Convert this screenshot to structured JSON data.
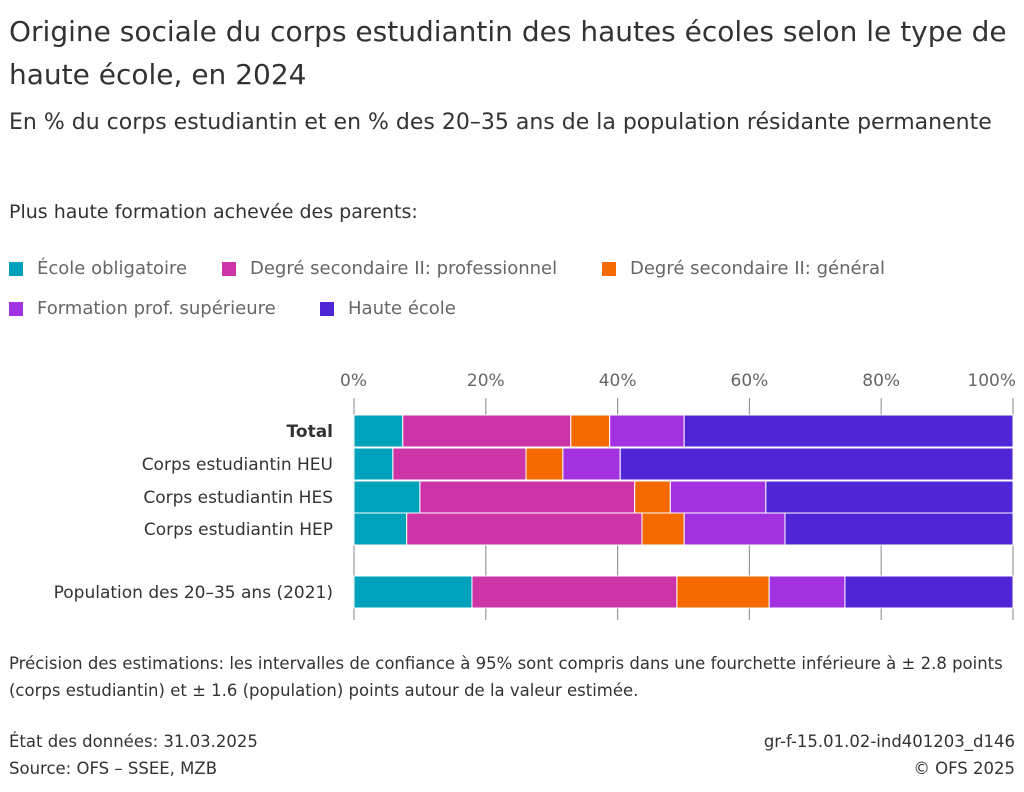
{
  "title": "Origine sociale du corps estudiantin des hautes écoles selon le type de haute école, en 2024",
  "subtitle": "En % du corps estudiantin et en % des 20–35 ans de la population résidante permanente",
  "legend_title": "Plus haute formation achevée des parents:",
  "note": "Précision des estimations: les intervalles de confiance à 95% sont compris dans une fourchette inférieure à ± 2.8 points (corps estudiantin) et ± 1.6 (population) points autour de la valeur estimée.",
  "footer": {
    "date": "État des données: 31.03.2025",
    "source": "Source: OFS – SSEE, MZB",
    "id": "gr-f-15.01.02-ind401203_d146",
    "copyright": "© OFS 2025"
  },
  "chart_data": {
    "type": "bar",
    "orientation": "horizontal-stacked-100",
    "xlim": [
      0,
      100
    ],
    "x_ticks": [
      "0%",
      "20%",
      "40%",
      "60%",
      "80%",
      "100%"
    ],
    "grid": true,
    "legend_placement": "top",
    "categories": [
      "Total",
      "Corps estudiantin HEU",
      "Corps estudiantin HES",
      "Corps estudiantin HEP",
      "Population des 20–35 ans (2021)"
    ],
    "series": [
      {
        "name": "École obligatoire",
        "color": "#00a1ba",
        "values": [
          7.4,
          5.9,
          10.0,
          8.0,
          17.9
        ]
      },
      {
        "name": "Degré secondaire II: professionnel",
        "color": "#cc34a8",
        "values": [
          25.5,
          20.2,
          32.6,
          35.7,
          31.1
        ]
      },
      {
        "name": "Degré secondaire II: général",
        "color": "#f46a00",
        "values": [
          5.9,
          5.6,
          5.4,
          6.4,
          14.0
        ]
      },
      {
        "name": "Formation prof. supérieure",
        "color": "#a232e0",
        "values": [
          11.3,
          8.7,
          14.5,
          15.3,
          11.5
        ]
      },
      {
        "name": "Haute école",
        "color": "#4e26d6",
        "values": [
          49.9,
          59.6,
          37.5,
          34.6,
          25.5
        ]
      }
    ]
  }
}
